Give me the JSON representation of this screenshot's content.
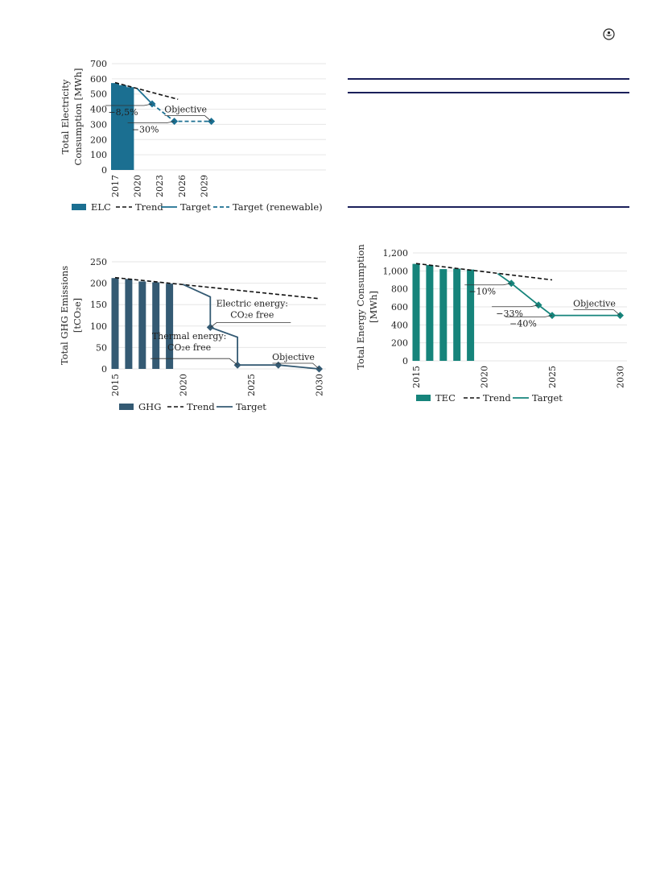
{
  "chart_data": [
    {
      "id": "elc",
      "type": "bar",
      "ylabel_lines": [
        "Total Electricity",
        "Consumption [MWh]"
      ],
      "ylim": [
        0,
        700
      ],
      "yticks": [
        0,
        100,
        200,
        300,
        400,
        500,
        600,
        700
      ],
      "xlim": [
        2017,
        2030.5
      ],
      "xticks": [
        2017,
        2020,
        2023,
        2026,
        2029
      ],
      "grid": true,
      "color": "#1b6f91",
      "bars": {
        "name": "ELC",
        "x": [
          2017,
          2018,
          2019
        ],
        "values": [
          572,
          558,
          545
        ]
      },
      "trend": {
        "name": "Trend",
        "x": [
          2017,
          2025.5
        ],
        "y": [
          575,
          465
        ]
      },
      "target": {
        "name": "Target",
        "x": [
          2020,
          2022
        ],
        "y": [
          535,
          435
        ]
      },
      "target_renewable": {
        "name": "Target (renewable)",
        "x": [
          2022,
          2025,
          2030
        ],
        "y": [
          435,
          320,
          320
        ]
      },
      "markers": {
        "x": [
          2022,
          2025,
          2030
        ],
        "y": [
          435,
          320,
          320
        ]
      },
      "annotations": [
        {
          "text": "−8,5%",
          "x": 2022,
          "y": 435
        },
        {
          "text": "−30%",
          "x": 2025,
          "y": 320
        },
        {
          "text": "Objective",
          "x": 2030,
          "y": 320
        }
      ],
      "legend": [
        "ELC",
        "Trend",
        "Target",
        "Target (renewable)"
      ]
    },
    {
      "id": "ghg",
      "type": "bar",
      "ylabel_lines": [
        "Total GHG Emissions",
        "[tCO₂e]"
      ],
      "ylim": [
        0,
        250
      ],
      "yticks": [
        0,
        50,
        100,
        150,
        200,
        250
      ],
      "xlim": [
        2015,
        2030.5
      ],
      "xticks": [
        2015,
        2020,
        2025,
        2030
      ],
      "grid": true,
      "color": "#345a73",
      "bars": {
        "name": "GHG",
        "x": [
          2015,
          2016,
          2017,
          2018,
          2019
        ],
        "values": [
          212,
          210,
          204,
          202,
          199
        ]
      },
      "trend": {
        "name": "Trend",
        "x": [
          2015,
          2030
        ],
        "y": [
          213,
          164
        ]
      },
      "target": {
        "name": "Target",
        "x": [
          2020,
          2022,
          2022,
          2024,
          2024,
          2027,
          2030
        ],
        "y": [
          197,
          168,
          97,
          74,
          9,
          9,
          0
        ]
      },
      "markers": {
        "x": [
          2022,
          2024,
          2027,
          2030
        ],
        "y": [
          97,
          9,
          9,
          0
        ]
      },
      "annotations": [
        {
          "lines": [
            "Electric energy:",
            "CO₂e free"
          ],
          "x": 2022,
          "y": 97
        },
        {
          "lines": [
            "Thermal energy:",
            "CO₂e free"
          ],
          "x": 2024,
          "y": 9
        },
        {
          "text": "Objective",
          "x": 2030,
          "y": 0
        }
      ],
      "legend": [
        "GHG",
        "Trend",
        "Target"
      ]
    },
    {
      "id": "tec",
      "type": "bar",
      "ylabel_lines": [
        "Total Energy Consumption",
        "[MWh]"
      ],
      "ylim": [
        0,
        1200
      ],
      "yticks": [
        0,
        200,
        400,
        600,
        800,
        1000,
        1200
      ],
      "ytick_labels": [
        "0",
        "200",
        "400",
        "600",
        "800",
        "1,000",
        "1,200"
      ],
      "xlim": [
        2015,
        2030.5
      ],
      "xticks": [
        2015,
        2020,
        2025,
        2030
      ],
      "grid": true,
      "color": "#16847b",
      "bars": {
        "name": "TEC",
        "x": [
          2015,
          2016,
          2017,
          2018,
          2019
        ],
        "values": [
          1078,
          1065,
          1020,
          1025,
          1015
        ]
      },
      "trend": {
        "name": "Trend",
        "x": [
          2015,
          2025
        ],
        "y": [
          1082,
          900
        ]
      },
      "target": {
        "name": "Target",
        "x": [
          2021,
          2022,
          2024,
          2025,
          2030
        ],
        "y": [
          970,
          862,
          620,
          505,
          505
        ]
      },
      "markers": {
        "x": [
          2022,
          2024,
          2025,
          2030
        ],
        "y": [
          862,
          620,
          505,
          505
        ]
      },
      "annotations": [
        {
          "text": "−10%",
          "x": 2022,
          "y": 862
        },
        {
          "text": "−33%",
          "x": 2024,
          "y": 620
        },
        {
          "text": "−40%",
          "x": 2025,
          "y": 505
        },
        {
          "text": "Objective",
          "x": 2030,
          "y": 505
        }
      ],
      "legend": [
        "TEC",
        "Trend",
        "Target"
      ]
    }
  ],
  "icons": {
    "top_right": "emblem-icon"
  },
  "colors": {
    "rule": "#1a1f5a"
  }
}
